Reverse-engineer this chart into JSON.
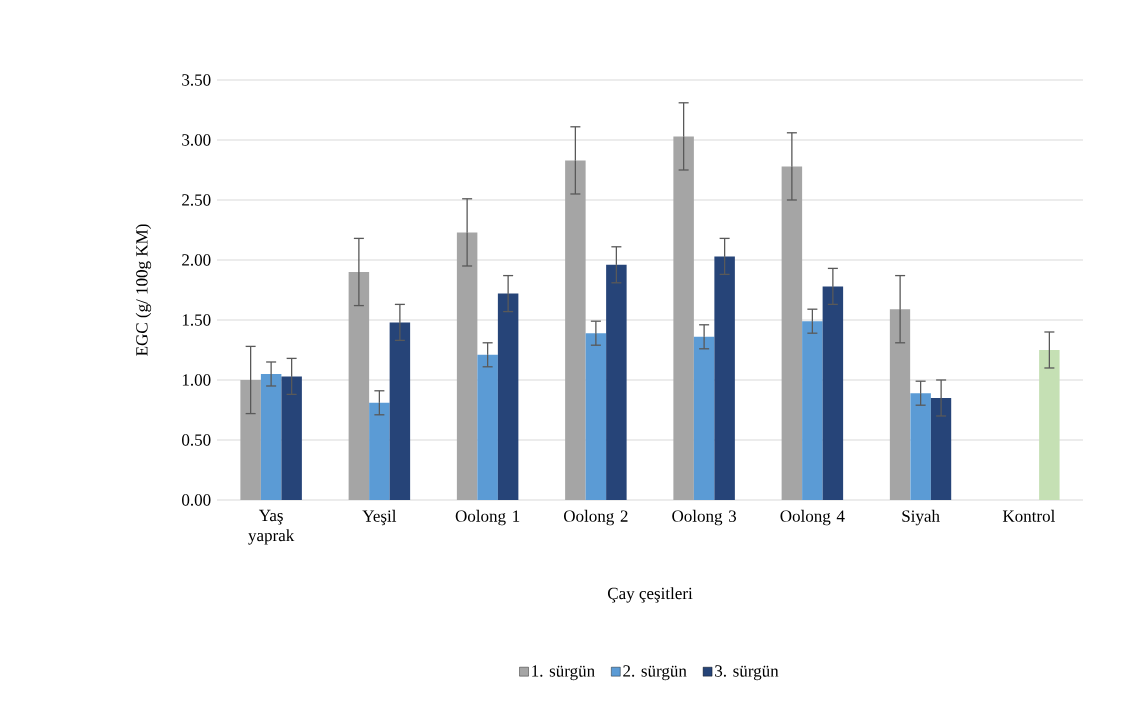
{
  "chart_data": {
    "type": "bar",
    "xlabel": "Çay çeşitleri",
    "ylabel": "EGC (g/ 100g KM)",
    "categories": [
      "Yaş yaprak",
      "Yeşil",
      "Oolong 1",
      "Oolong 2",
      "Oolong 3",
      "Oolong 4",
      "Siyah",
      "Kontrol"
    ],
    "series": [
      {
        "name": "1. sürgün",
        "color": "#a5a5a5",
        "values": [
          1.0,
          1.9,
          2.23,
          2.83,
          3.03,
          2.78,
          1.59,
          null
        ],
        "errors": [
          0.28,
          0.28,
          0.28,
          0.28,
          0.28,
          0.28,
          0.28,
          null
        ]
      },
      {
        "name": "2. sürgün",
        "color": "#5b9bd5",
        "values": [
          1.05,
          0.81,
          1.21,
          1.39,
          1.36,
          1.49,
          0.89,
          null
        ],
        "errors": [
          0.1,
          0.1,
          0.1,
          0.1,
          0.1,
          0.1,
          0.1,
          null
        ]
      },
      {
        "name": "3. sürgün",
        "color": "#264478",
        "colors": [
          "#264478",
          "#264478",
          "#264478",
          "#264478",
          "#264478",
          "#264478",
          "#264478",
          "#c5e0b4"
        ],
        "values": [
          1.03,
          1.48,
          1.72,
          1.96,
          2.03,
          1.78,
          0.85,
          1.25
        ],
        "errors": [
          0.15,
          0.15,
          0.15,
          0.15,
          0.15,
          0.15,
          0.15,
          0.15
        ]
      }
    ],
    "ylim": [
      0,
      3.5
    ],
    "yticks": [
      {
        "value": 0,
        "label": "0.00"
      },
      {
        "value": 0.5,
        "label": "0.50"
      },
      {
        "value": 1,
        "label": "1.00"
      },
      {
        "value": 1.5,
        "label": "1.50"
      },
      {
        "value": 2,
        "label": "2.00"
      },
      {
        "value": 2.5,
        "label": "2.50"
      },
      {
        "value": 3,
        "label": "3.00"
      },
      {
        "value": 3.5,
        "label": "3.50"
      }
    ],
    "grid": "y",
    "legend": "bottom"
  }
}
